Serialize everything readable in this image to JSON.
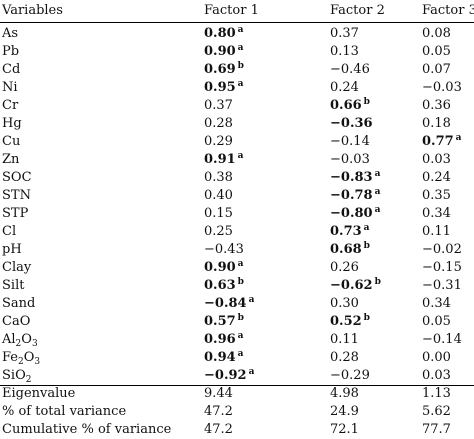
{
  "headers": [
    "Variables",
    "Factor 1",
    "Factor 2",
    "Factor 3"
  ],
  "rows": [
    {
      "var": "As",
      "f1": {
        "v": "0.80",
        "b": true,
        "s": "a"
      },
      "f2": {
        "v": "0.37",
        "b": false,
        "s": ""
      },
      "f3": {
        "v": "0.08",
        "b": false,
        "s": ""
      }
    },
    {
      "var": "Pb",
      "f1": {
        "v": "0.90",
        "b": true,
        "s": "a"
      },
      "f2": {
        "v": "0.13",
        "b": false,
        "s": ""
      },
      "f3": {
        "v": "0.05",
        "b": false,
        "s": ""
      }
    },
    {
      "var": "Cd",
      "f1": {
        "v": "0.69",
        "b": true,
        "s": "b"
      },
      "f2": {
        "v": "−0.46",
        "b": false,
        "s": ""
      },
      "f3": {
        "v": "0.07",
        "b": false,
        "s": ""
      }
    },
    {
      "var": "Ni",
      "f1": {
        "v": "0.95",
        "b": true,
        "s": "a"
      },
      "f2": {
        "v": "0.24",
        "b": false,
        "s": ""
      },
      "f3": {
        "v": "−0.03",
        "b": false,
        "s": ""
      }
    },
    {
      "var": "Cr",
      "f1": {
        "v": "0.37",
        "b": false,
        "s": ""
      },
      "f2": {
        "v": "0.66",
        "b": true,
        "s": "b"
      },
      "f3": {
        "v": "0.36",
        "b": false,
        "s": ""
      }
    },
    {
      "var": "Hg",
      "f1": {
        "v": "0.28",
        "b": false,
        "s": ""
      },
      "f2": {
        "v": "−0.36",
        "b": true,
        "s": ""
      },
      "f3": {
        "v": "0.18",
        "b": false,
        "s": ""
      }
    },
    {
      "var": "Cu",
      "f1": {
        "v": "0.29",
        "b": false,
        "s": ""
      },
      "f2": {
        "v": "−0.14",
        "b": false,
        "s": ""
      },
      "f3": {
        "v": "0.77",
        "b": true,
        "s": "a"
      }
    },
    {
      "var": "Zn",
      "f1": {
        "v": "0.91",
        "b": true,
        "s": "a"
      },
      "f2": {
        "v": "−0.03",
        "b": false,
        "s": ""
      },
      "f3": {
        "v": "0.03",
        "b": false,
        "s": ""
      }
    },
    {
      "var": "SOC",
      "f1": {
        "v": "0.38",
        "b": false,
        "s": ""
      },
      "f2": {
        "v": "−0.83",
        "b": true,
        "s": "a"
      },
      "f3": {
        "v": "0.24",
        "b": false,
        "s": ""
      }
    },
    {
      "var": "STN",
      "f1": {
        "v": "0.40",
        "b": false,
        "s": ""
      },
      "f2": {
        "v": "−0.78",
        "b": true,
        "s": "a"
      },
      "f3": {
        "v": "0.35",
        "b": false,
        "s": ""
      }
    },
    {
      "var": "STP",
      "f1": {
        "v": "0.15",
        "b": false,
        "s": ""
      },
      "f2": {
        "v": "−0.80",
        "b": true,
        "s": "a"
      },
      "f3": {
        "v": "0.34",
        "b": false,
        "s": ""
      }
    },
    {
      "var": "Cl",
      "f1": {
        "v": "0.25",
        "b": false,
        "s": ""
      },
      "f2": {
        "v": "0.73",
        "b": true,
        "s": "a"
      },
      "f3": {
        "v": "0.11",
        "b": false,
        "s": ""
      }
    },
    {
      "var": "pH",
      "f1": {
        "v": "−0.43",
        "b": false,
        "s": ""
      },
      "f2": {
        "v": "0.68",
        "b": true,
        "s": "b"
      },
      "f3": {
        "v": "−0.02",
        "b": false,
        "s": ""
      }
    },
    {
      "var": "Clay",
      "f1": {
        "v": "0.90",
        "b": true,
        "s": "a"
      },
      "f2": {
        "v": "0.26",
        "b": false,
        "s": ""
      },
      "f3": {
        "v": "−0.15",
        "b": false,
        "s": ""
      }
    },
    {
      "var": "Silt",
      "f1": {
        "v": "0.63",
        "b": true,
        "s": "b"
      },
      "f2": {
        "v": "−0.62",
        "b": true,
        "s": "b"
      },
      "f3": {
        "v": "−0.31",
        "b": false,
        "s": ""
      }
    },
    {
      "var": "Sand",
      "f1": {
        "v": "−0.84",
        "b": true,
        "s": "a"
      },
      "f2": {
        "v": "0.30",
        "b": false,
        "s": ""
      },
      "f3": {
        "v": "0.34",
        "b": false,
        "s": ""
      }
    },
    {
      "var": "CaO",
      "f1": {
        "v": "0.57",
        "b": true,
        "s": "b"
      },
      "f2": {
        "v": "0.52",
        "b": true,
        "s": "b"
      },
      "f3": {
        "v": "0.05",
        "b": false,
        "s": ""
      }
    },
    {
      "var": "Al2O3",
      "sub": [
        [
          "Al",
          ""
        ],
        [
          "2",
          "sub"
        ],
        [
          "O",
          ""
        ],
        [
          "3",
          "sub"
        ]
      ],
      "f1": {
        "v": "0.96",
        "b": true,
        "s": "a"
      },
      "f2": {
        "v": "0.11",
        "b": false,
        "s": ""
      },
      "f3": {
        "v": "−0.14",
        "b": false,
        "s": ""
      }
    },
    {
      "var": "Fe2O3",
      "sub": [
        [
          "Fe",
          ""
        ],
        [
          "2",
          "sub"
        ],
        [
          "O",
          ""
        ],
        [
          "3",
          "sub"
        ]
      ],
      "f1": {
        "v": "0.94",
        "b": true,
        "s": "a"
      },
      "f2": {
        "v": "0.28",
        "b": false,
        "s": ""
      },
      "f3": {
        "v": "0.00",
        "b": false,
        "s": ""
      }
    },
    {
      "var": "SiO2",
      "sub": [
        [
          "SiO",
          ""
        ],
        [
          "2",
          "sub"
        ]
      ],
      "f1": {
        "v": "−0.92",
        "b": true,
        "s": "a"
      },
      "f2": {
        "v": "−0.29",
        "b": false,
        "s": ""
      },
      "f3": {
        "v": "0.03",
        "b": false,
        "s": ""
      }
    },
    {
      "var": "Eigenvalue",
      "f1": {
        "v": "9.44",
        "b": false,
        "s": ""
      },
      "f2": {
        "v": "4.98",
        "b": false,
        "s": ""
      },
      "f3": {
        "v": "1.13",
        "b": false,
        "s": ""
      }
    },
    {
      "var": "% of total variance",
      "f1": {
        "v": "47.2",
        "b": false,
        "s": ""
      },
      "f2": {
        "v": "24.9",
        "b": false,
        "s": ""
      },
      "f3": {
        "v": "5.62",
        "b": false,
        "s": ""
      }
    },
    {
      "var": "Cumulative % of variance",
      "f1": {
        "v": "47.2",
        "b": false,
        "s": ""
      },
      "f2": {
        "v": "72.1",
        "b": false,
        "s": ""
      },
      "f3": {
        "v": "77.7",
        "b": false,
        "s": ""
      }
    }
  ]
}
